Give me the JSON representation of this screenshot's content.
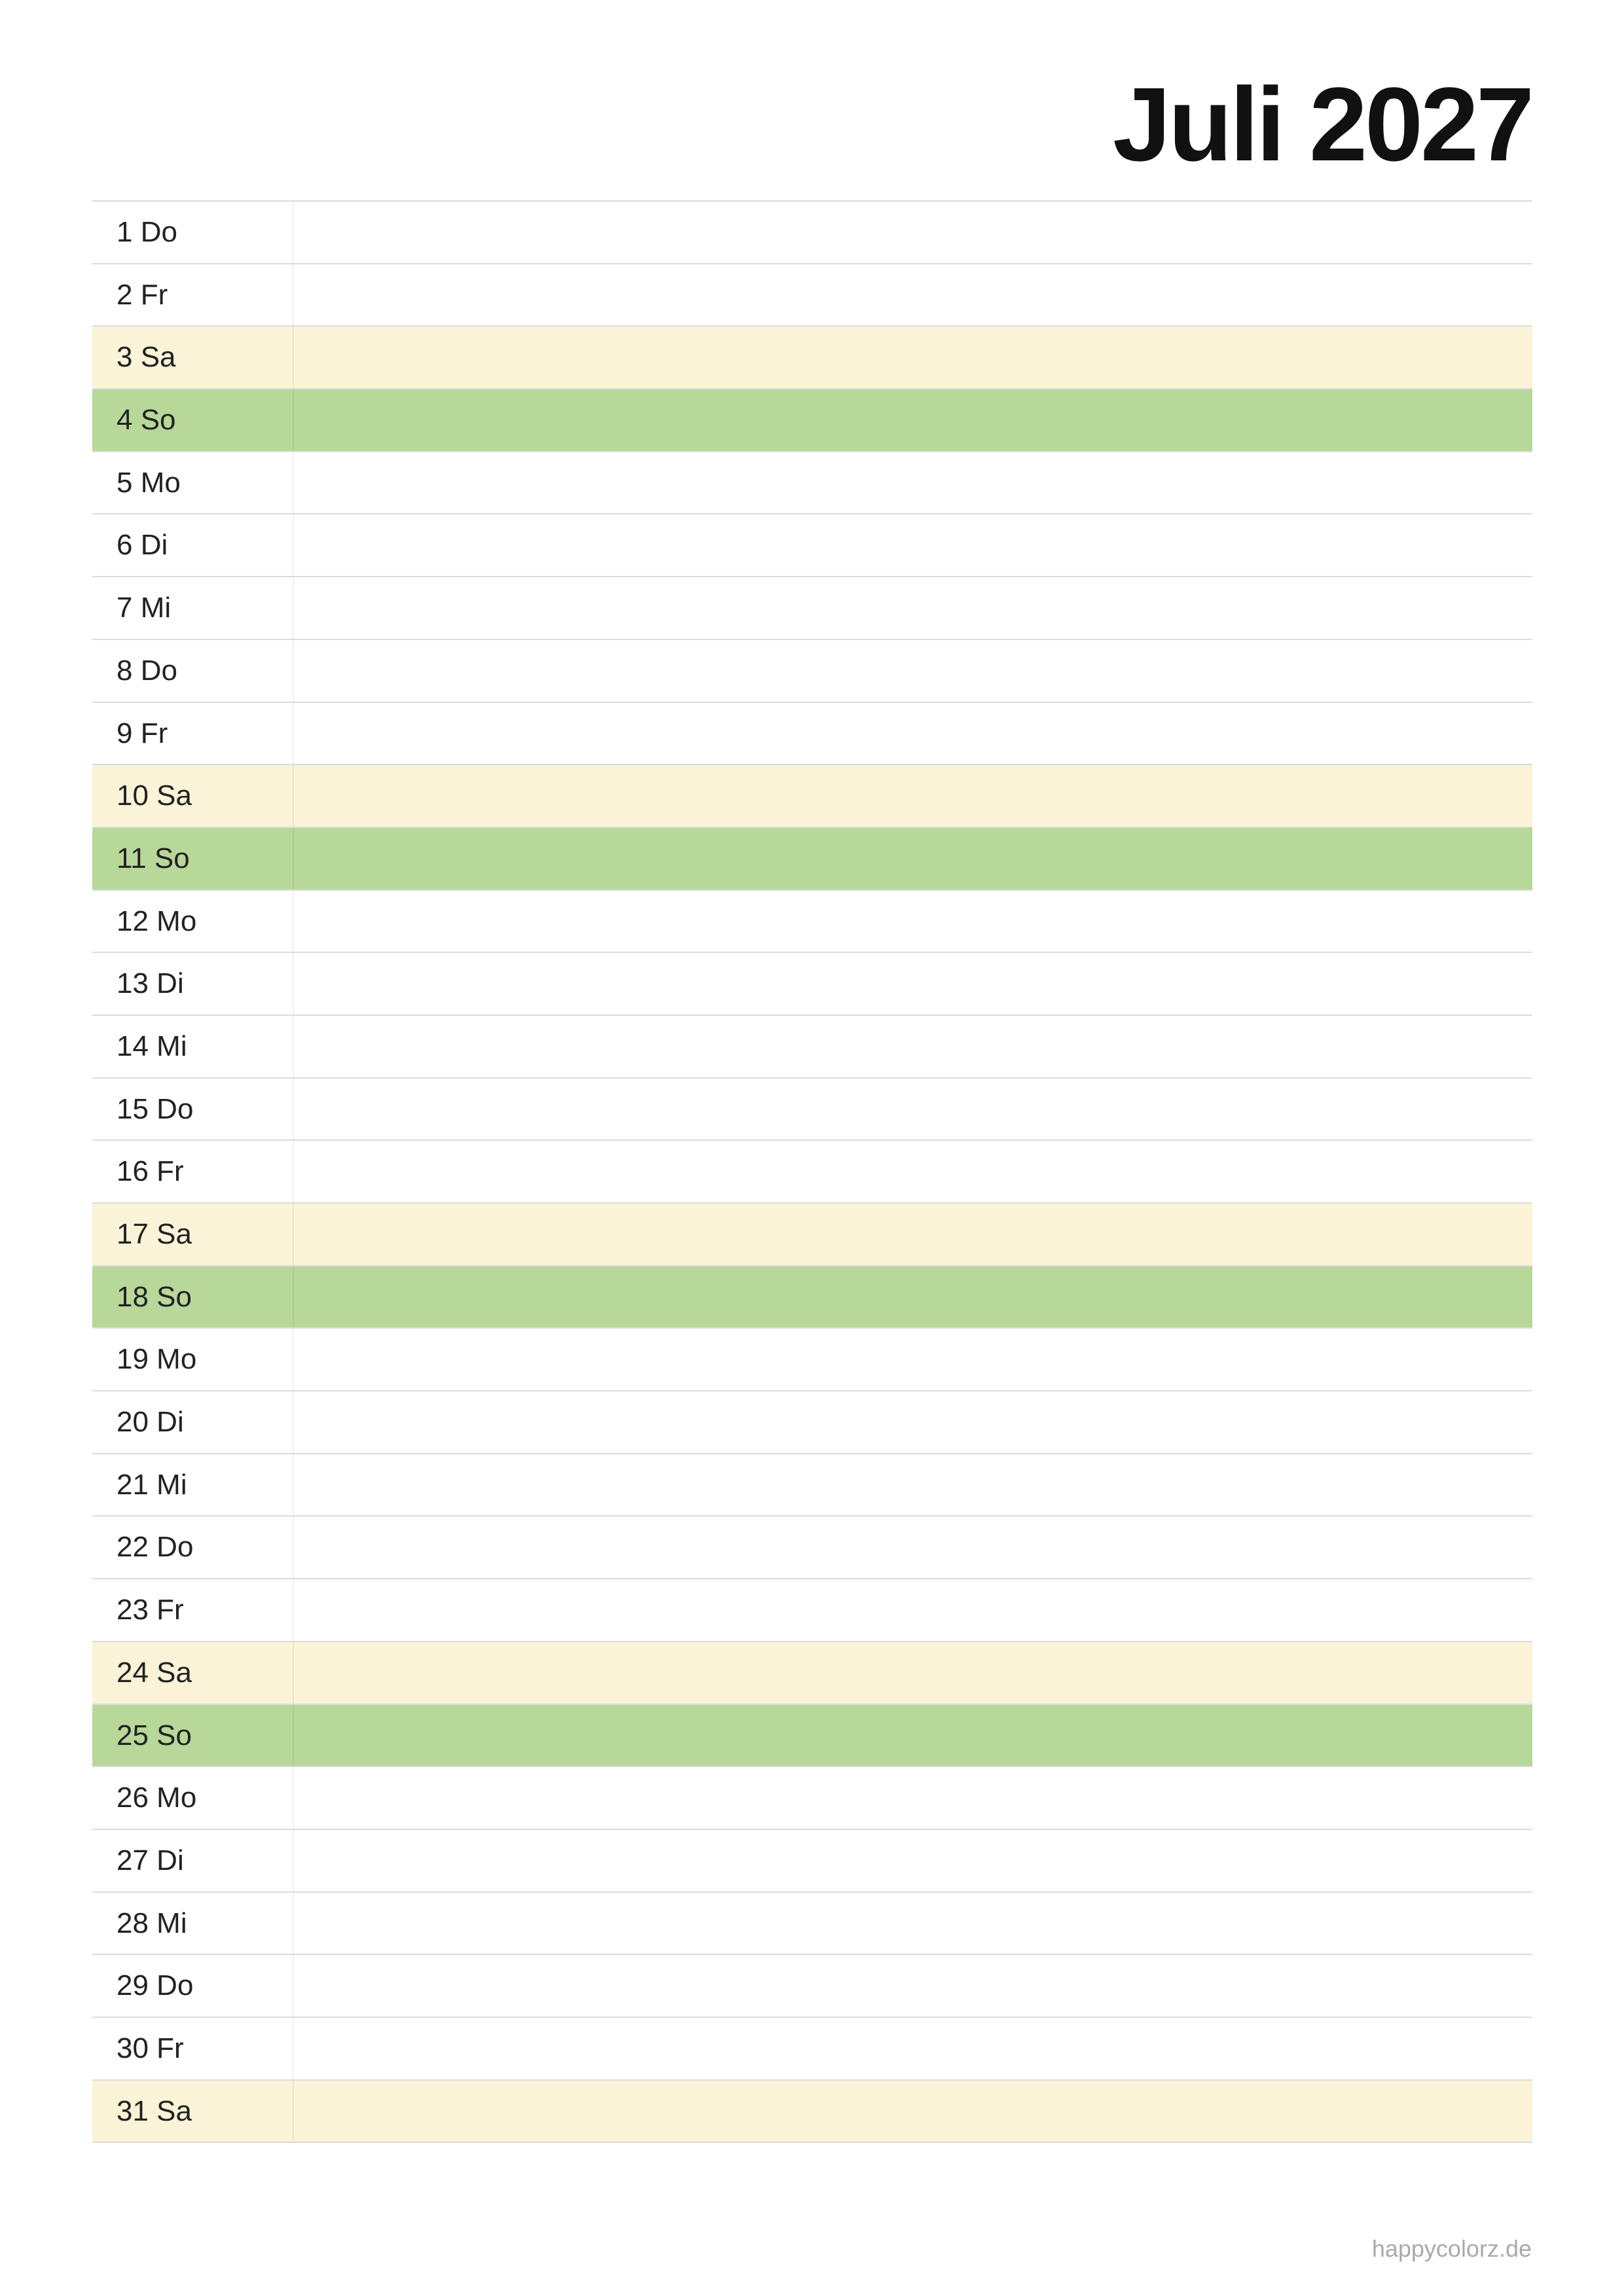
{
  "header": {
    "title": "Juli 2027"
  },
  "table": {
    "rows": [
      {
        "label": "1 Do",
        "color": "#ffffff"
      },
      {
        "label": "2 Fr",
        "color": "#ffffff"
      },
      {
        "label": "3 Sa",
        "color": "#faf3d7"
      },
      {
        "label": "4 So",
        "color": "#b8d89a"
      },
      {
        "label": "5 Mo",
        "color": "#ffffff"
      },
      {
        "label": "6 Di",
        "color": "#ffffff"
      },
      {
        "label": "7 Mi",
        "color": "#ffffff"
      },
      {
        "label": "8 Do",
        "color": "#ffffff"
      },
      {
        "label": "9 Fr",
        "color": "#ffffff"
      },
      {
        "label": "10 Sa",
        "color": "#faf3d7"
      },
      {
        "label": "11 So",
        "color": "#b8d89a"
      },
      {
        "label": "12 Mo",
        "color": "#ffffff"
      },
      {
        "label": "13 Di",
        "color": "#ffffff"
      },
      {
        "label": "14 Mi",
        "color": "#ffffff"
      },
      {
        "label": "15 Do",
        "color": "#ffffff"
      },
      {
        "label": "16 Fr",
        "color": "#ffffff"
      },
      {
        "label": "17 Sa",
        "color": "#faf3d7"
      },
      {
        "label": "18 So",
        "color": "#b8d89a"
      },
      {
        "label": "19 Mo",
        "color": "#ffffff"
      },
      {
        "label": "20 Di",
        "color": "#ffffff"
      },
      {
        "label": "21 Mi",
        "color": "#ffffff"
      },
      {
        "label": "22 Do",
        "color": "#ffffff"
      },
      {
        "label": "23 Fr",
        "color": "#ffffff"
      },
      {
        "label": "24 Sa",
        "color": "#faf3d7"
      },
      {
        "label": "25 So",
        "color": "#b8d89a"
      },
      {
        "label": "26 Mo",
        "color": "#ffffff"
      },
      {
        "label": "27 Di",
        "color": "#ffffff"
      },
      {
        "label": "28 Mi",
        "color": "#ffffff"
      },
      {
        "label": "29 Do",
        "color": "#ffffff"
      },
      {
        "label": "30 Fr",
        "color": "#ffffff"
      },
      {
        "label": "31 Sa",
        "color": "#faf3d7"
      }
    ]
  },
  "footer": {
    "text": "happycolorz.de"
  }
}
